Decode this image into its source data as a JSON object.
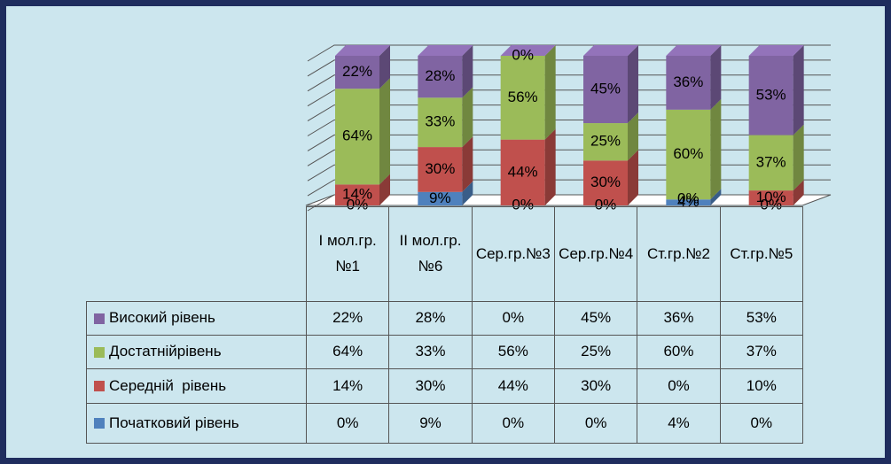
{
  "chart_data": {
    "type": "bar3d_stacked",
    "categories": [
      "I мол.гр.№1",
      "II мол.гр.№6",
      "Сер.гр.№3",
      "Сер.гр.№4",
      "Ст.гр.№2",
      "Ст.гр.№5"
    ],
    "series": [
      {
        "name": "Початковий рівень",
        "color": "#4f81bd",
        "values": [
          0,
          9,
          0,
          0,
          4,
          0
        ],
        "value_labels": [
          "0%",
          "9%",
          "0%",
          "0%",
          "4%",
          "0%"
        ]
      },
      {
        "name": "Середній  рівень",
        "color": "#c0504d",
        "values": [
          14,
          30,
          44,
          30,
          0,
          10
        ],
        "value_labels": [
          "14%",
          "30%",
          "44%",
          "30%",
          "0%",
          "10%"
        ]
      },
      {
        "name": "Достатнійрівень",
        "color": "#9bbb59",
        "values": [
          64,
          33,
          56,
          25,
          60,
          37
        ],
        "value_labels": [
          "64%",
          "33%",
          "56%",
          "25%",
          "60%",
          "37%"
        ]
      },
      {
        "name": "Високий рівень",
        "color": "#8064a2",
        "values": [
          22,
          28,
          0,
          45,
          36,
          53
        ],
        "value_labels": [
          "22%",
          "28%",
          "0%",
          "45%",
          "36%",
          "53%"
        ]
      }
    ],
    "ylim": [
      0,
      100
    ],
    "yticks": [
      0,
      10,
      20,
      30,
      40,
      50,
      60,
      70,
      80,
      90,
      100
    ],
    "grid": true
  }
}
